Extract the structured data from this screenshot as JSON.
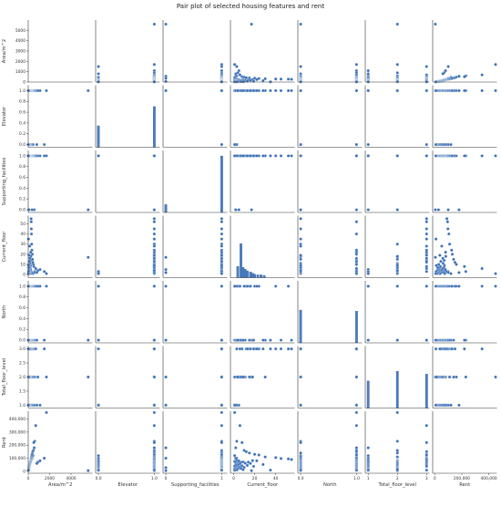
{
  "chart_data": {
    "type": "scatter",
    "title": "Pair plot of selected housing features and rent",
    "style": {
      "point_color": "#3a6fb5",
      "bar_color": "#4a7cc0",
      "axis_color": "#333333"
    },
    "variables": [
      {
        "name": "Area/m^2",
        "range": [
          0,
          6000
        ],
        "ticks": [
          0,
          2000,
          4000
        ],
        "tick_labels": [
          "0",
          "2000",
          "4000"
        ],
        "y_ticks": [
          0,
          1000,
          2000,
          3000,
          4000,
          5000
        ],
        "y_tick_labels": [
          "0",
          "1000",
          "2000",
          "3000",
          "4000",
          "5000"
        ]
      },
      {
        "name": "Elevator",
        "range": [
          -0.05,
          1.1
        ],
        "ticks": [
          0,
          1
        ],
        "tick_labels": [
          "0.0",
          "1.0"
        ],
        "y_ticks": [
          0,
          0.2,
          0.4,
          0.6,
          0.8,
          1.0
        ],
        "y_tick_labels": [
          "0.0",
          "0.2",
          "0.4",
          "0.6",
          "0.8",
          "1.0"
        ]
      },
      {
        "name": "Supporting_facilities",
        "range": [
          -0.05,
          1.1
        ],
        "ticks": [
          0,
          1
        ],
        "tick_labels": [
          "0",
          "1"
        ],
        "y_ticks": [
          0,
          0.2,
          0.4,
          0.6,
          0.8,
          1.0
        ],
        "y_tick_labels": [
          "0.0",
          "0.2",
          "0.4",
          "0.6",
          "0.8",
          "1.0"
        ]
      },
      {
        "name": "Current_floor",
        "range": [
          -3,
          58
        ],
        "ticks": [
          0,
          20,
          40
        ],
        "tick_labels": [
          "0",
          "20",
          "40"
        ],
        "y_ticks": [
          0,
          10,
          20,
          30,
          40,
          50
        ],
        "y_tick_labels": [
          "0",
          "10",
          "20",
          "30",
          "40",
          "50"
        ]
      },
      {
        "name": "North",
        "range": [
          -0.05,
          1.1
        ],
        "ticks": [
          0,
          1
        ],
        "tick_labels": [
          "0.0",
          "1.0"
        ],
        "y_ticks": [
          0,
          0.2,
          0.4,
          0.6,
          0.8,
          1.0
        ],
        "y_tick_labels": [
          "0.0",
          "0.2",
          "0.4",
          "0.6",
          "0.8",
          "1.0"
        ]
      },
      {
        "name": "Total_floor_level",
        "range": [
          0.9,
          3.1
        ],
        "ticks": [
          1,
          2,
          3
        ],
        "tick_labels": [
          "1",
          "2",
          "3"
        ],
        "y_ticks": [
          1.0,
          1.5,
          2.0,
          2.5,
          3.0
        ],
        "y_tick_labels": [
          "1.0",
          "1.5",
          "2.0",
          "2.5",
          "3.0"
        ]
      },
      {
        "name": "Rent",
        "range": [
          -15000,
          460000
        ],
        "ticks": [
          0,
          200000,
          400000
        ],
        "tick_labels": [
          "0",
          "200,000",
          "400,000"
        ],
        "y_ticks": [
          0,
          100000,
          200000,
          300000,
          400000
        ],
        "y_tick_labels": [
          "0",
          "100,000",
          "200,000",
          "300,000",
          "400,000"
        ]
      }
    ],
    "diagonal_histograms": [
      {
        "variable": "Area/m^2",
        "bins": [],
        "counts": []
      },
      {
        "variable": "Elevator",
        "bins": [
          0,
          1
        ],
        "counts": [
          0.38,
          0.72
        ]
      },
      {
        "variable": "Supporting_facilities",
        "bins": [
          0,
          1
        ],
        "counts": [
          0.14,
          1.0
        ]
      },
      {
        "variable": "Current_floor",
        "bins": [
          4,
          7,
          9,
          11,
          13,
          16,
          18,
          20,
          23,
          26,
          29
        ],
        "counts": [
          0.2,
          0.6,
          0.18,
          0.15,
          0.12,
          0.1,
          0.08,
          0.06,
          0.05,
          0.05,
          0.04
        ]
      },
      {
        "variable": "North",
        "bins": [
          0,
          1
        ],
        "counts": [
          0.58,
          0.56
        ]
      },
      {
        "variable": "Total_floor_level",
        "bins": [
          1,
          2,
          3
        ],
        "counts": [
          0.48,
          0.65,
          0.6
        ]
      },
      {
        "variable": "Rent",
        "bins": [],
        "counts": []
      }
    ],
    "observations": [
      [
        5600,
        1,
        0,
        17,
        0,
        2,
        5000
      ],
      [
        1700,
        1,
        1,
        1,
        1,
        2,
        450000
      ],
      [
        1500,
        0,
        1,
        3,
        0,
        3,
        100000
      ],
      [
        1100,
        1,
        1,
        5,
        1,
        1,
        80000
      ],
      [
        900,
        1,
        1,
        4,
        1,
        2,
        70000
      ],
      [
        800,
        0,
        1,
        2,
        0,
        1,
        60000
      ],
      [
        700,
        1,
        1,
        6,
        1,
        3,
        350000
      ],
      [
        600,
        1,
        1,
        3,
        0,
        2,
        230000
      ],
      [
        560,
        1,
        0,
        2,
        1,
        1,
        180000
      ],
      [
        520,
        1,
        1,
        8,
        0,
        3,
        220000
      ],
      [
        480,
        1,
        1,
        10,
        1,
        2,
        160000
      ],
      [
        450,
        0,
        1,
        1,
        0,
        1,
        120000
      ],
      [
        420,
        1,
        1,
        12,
        1,
        3,
        150000
      ],
      [
        400,
        1,
        1,
        15,
        0,
        2,
        140000
      ],
      [
        380,
        1,
        1,
        20,
        1,
        3,
        130000
      ],
      [
        360,
        1,
        0,
        2,
        0,
        1,
        100000
      ],
      [
        340,
        1,
        1,
        24,
        1,
        3,
        125000
      ],
      [
        320,
        1,
        1,
        30,
        0,
        2,
        110000
      ],
      [
        300,
        1,
        1,
        40,
        1,
        3,
        105000
      ],
      [
        290,
        1,
        1,
        45,
        0,
        3,
        98000
      ],
      [
        280,
        1,
        1,
        52,
        1,
        3,
        95000
      ],
      [
        270,
        1,
        1,
        55,
        0,
        3,
        90000
      ],
      [
        260,
        0,
        1,
        3,
        1,
        1,
        85000
      ],
      [
        250,
        1,
        1,
        18,
        0,
        2,
        82000
      ],
      [
        240,
        1,
        1,
        22,
        1,
        3,
        80000
      ],
      [
        230,
        1,
        1,
        5,
        0,
        2,
        78000
      ],
      [
        220,
        0,
        1,
        1,
        1,
        1,
        75000
      ],
      [
        210,
        1,
        1,
        9,
        0,
        2,
        72000
      ],
      [
        200,
        1,
        1,
        14,
        1,
        3,
        70000
      ],
      [
        190,
        1,
        1,
        7,
        0,
        2,
        68000
      ],
      [
        180,
        0,
        1,
        2,
        1,
        1,
        65000
      ],
      [
        170,
        1,
        1,
        11,
        0,
        2,
        62000
      ],
      [
        160,
        1,
        1,
        16,
        1,
        3,
        60000
      ],
      [
        150,
        1,
        1,
        6,
        0,
        2,
        58000
      ],
      [
        140,
        0,
        1,
        3,
        1,
        1,
        55000
      ],
      [
        130,
        1,
        1,
        28,
        0,
        3,
        52000
      ],
      [
        120,
        1,
        1,
        4,
        1,
        2,
        50000
      ],
      [
        110,
        0,
        1,
        2,
        0,
        1,
        47000
      ],
      [
        100,
        1,
        1,
        13,
        1,
        3,
        45000
      ],
      [
        95,
        1,
        1,
        8,
        0,
        2,
        42000
      ],
      [
        90,
        0,
        1,
        1,
        1,
        1,
        40000
      ],
      [
        85,
        1,
        1,
        19,
        0,
        3,
        38000
      ],
      [
        80,
        1,
        1,
        6,
        1,
        2,
        35000
      ],
      [
        75,
        0,
        1,
        3,
        0,
        1,
        32000
      ],
      [
        70,
        1,
        1,
        10,
        1,
        2,
        30000
      ],
      [
        65,
        1,
        0,
        5,
        0,
        2,
        28000
      ],
      [
        60,
        0,
        1,
        2,
        1,
        1,
        25000
      ],
      [
        55,
        1,
        1,
        7,
        0,
        2,
        22000
      ],
      [
        50,
        0,
        1,
        1,
        1,
        1,
        20000
      ],
      [
        45,
        1,
        1,
        4,
        0,
        2,
        18000
      ],
      [
        40,
        0,
        1,
        2,
        1,
        1,
        15000
      ],
      [
        35,
        1,
        1,
        9,
        0,
        2,
        12000
      ],
      [
        30,
        0,
        1,
        3,
        1,
        1,
        10000
      ],
      [
        25,
        1,
        1,
        35,
        0,
        3,
        9000
      ],
      [
        20,
        0,
        1,
        1,
        1,
        1,
        8000
      ]
    ]
  }
}
